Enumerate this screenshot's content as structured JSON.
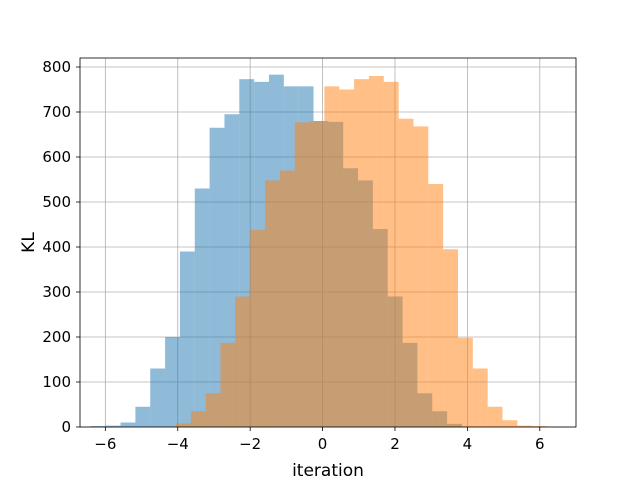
{
  "chart_data": {
    "type": "bar",
    "subtype": "overlaid-histogram",
    "title": "",
    "xlabel": "iteration",
    "ylabel": "KL",
    "xlim": [
      -6.7,
      7.0
    ],
    "ylim": [
      0,
      820
    ],
    "xticks": [
      -6,
      -4,
      -2,
      0,
      2,
      4,
      6
    ],
    "yticks": [
      0,
      100,
      200,
      300,
      400,
      500,
      600,
      700,
      800
    ],
    "grid": true,
    "legend": "none",
    "series": [
      {
        "color": "#1f77b4",
        "opacity": 0.5,
        "bin_edges": [
          -6.4,
          -5.99,
          -5.58,
          -5.17,
          -4.76,
          -4.35,
          -3.94,
          -3.53,
          -3.12,
          -2.71,
          -2.3,
          -1.89,
          -1.48,
          -1.07,
          -0.66,
          -0.25,
          0.16,
          0.57,
          0.98,
          1.39,
          1.8,
          2.21,
          2.62,
          3.03,
          3.44,
          3.85
        ],
        "values": [
          2,
          3,
          10,
          45,
          130,
          200,
          390,
          530,
          665,
          695,
          773,
          767,
          783,
          757,
          757,
          680,
          678,
          575,
          548,
          440,
          290,
          187,
          75,
          35,
          7
        ]
      },
      {
        "color": "#ff7f0e",
        "opacity": 0.5,
        "bin_edges": [
          -4.05,
          -3.64,
          -3.23,
          -2.82,
          -2.41,
          -2.0,
          -1.59,
          -1.18,
          -0.77,
          -0.36,
          0.05,
          0.46,
          0.87,
          1.28,
          1.69,
          2.1,
          2.51,
          2.92,
          3.33,
          3.74,
          4.15,
          4.56,
          4.97,
          5.38,
          5.79,
          6.2
        ],
        "values": [
          8,
          35,
          75,
          187,
          290,
          438,
          548,
          570,
          677,
          680,
          757,
          750,
          773,
          780,
          767,
          685,
          668,
          540,
          395,
          198,
          130,
          45,
          15,
          3,
          2
        ]
      }
    ]
  }
}
